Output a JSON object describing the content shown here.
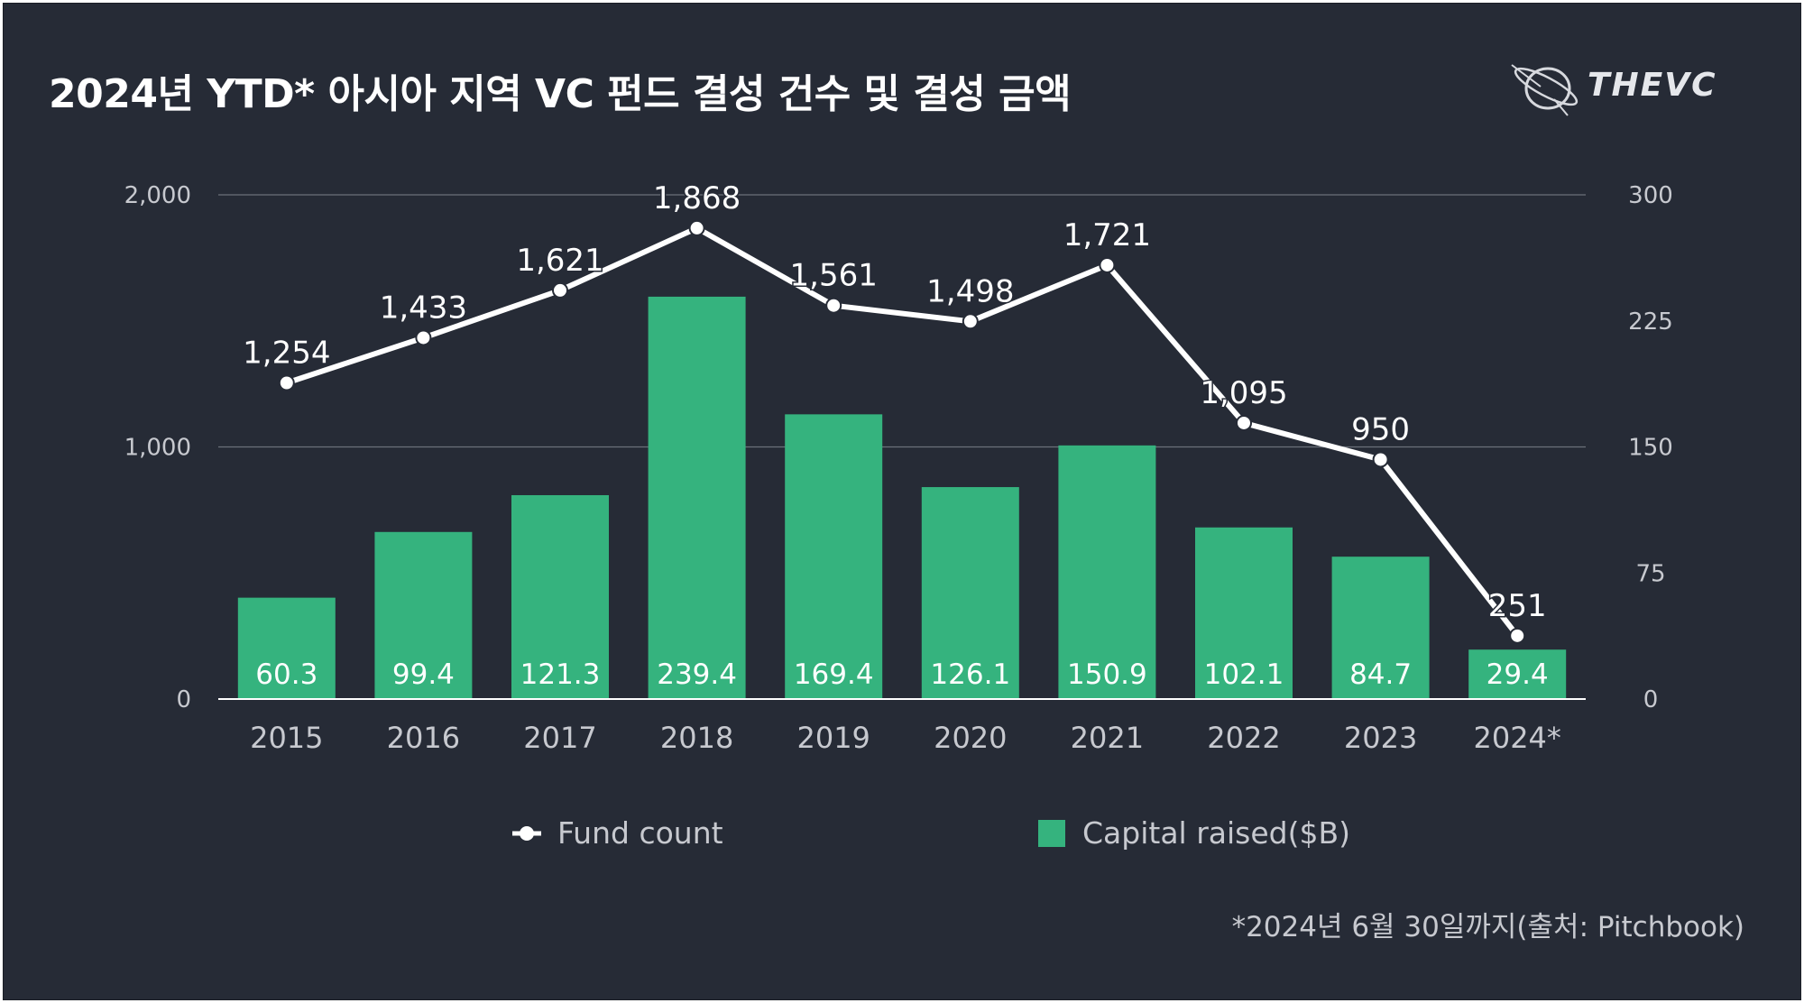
{
  "title": "2024년 YTD* 아시아 지역 VC 펀드 결성 건수 및 결성 금액",
  "logo": {
    "text": "THEVC",
    "icon": "orbit-logo-icon"
  },
  "footnote": "*2024년 6월 30일까지(출처: Pitchbook)",
  "colors": {
    "background": "#262b36",
    "bar": "#35b37e",
    "line": "#ffffff",
    "grid": "#6b707a",
    "text": "#c7c9cf"
  },
  "chart_data": {
    "type": "bar",
    "categories": [
      "2015",
      "2016",
      "2017",
      "2018",
      "2019",
      "2020",
      "2021",
      "2022",
      "2023",
      "2024*"
    ],
    "series": [
      {
        "name": "Capital raised($B)",
        "type": "bar",
        "axis": "right",
        "values": [
          60.3,
          99.4,
          121.3,
          239.4,
          169.4,
          126.1,
          150.9,
          102.1,
          84.7,
          29.4
        ],
        "labels": [
          "60.3",
          "99.4",
          "121.3",
          "239.4",
          "169.4",
          "126.1",
          "150.9",
          "102.1",
          "84.7",
          "29.4"
        ]
      },
      {
        "name": "Fund count",
        "type": "line",
        "axis": "left",
        "values": [
          1254,
          1433,
          1621,
          1868,
          1561,
          1498,
          1721,
          1095,
          950,
          251
        ],
        "labels": [
          "1,254",
          "1,433",
          "1,621",
          "1,868",
          "1,561",
          "1,498",
          "1,721",
          "1,095",
          "950",
          "251"
        ]
      }
    ],
    "y_left": {
      "range": [
        0,
        2000
      ],
      "ticks": [
        0,
        1000,
        2000
      ],
      "tick_labels": [
        "0",
        "1,000",
        "2,000"
      ]
    },
    "y_right": {
      "range": [
        0,
        300
      ],
      "ticks": [
        0,
        75,
        150,
        225,
        300
      ],
      "tick_labels": [
        "0",
        "75",
        "150",
        "225",
        "300"
      ]
    },
    "grid": true,
    "legend": {
      "position": "bottom",
      "items": [
        "Fund count",
        "Capital raised($B)"
      ]
    }
  }
}
